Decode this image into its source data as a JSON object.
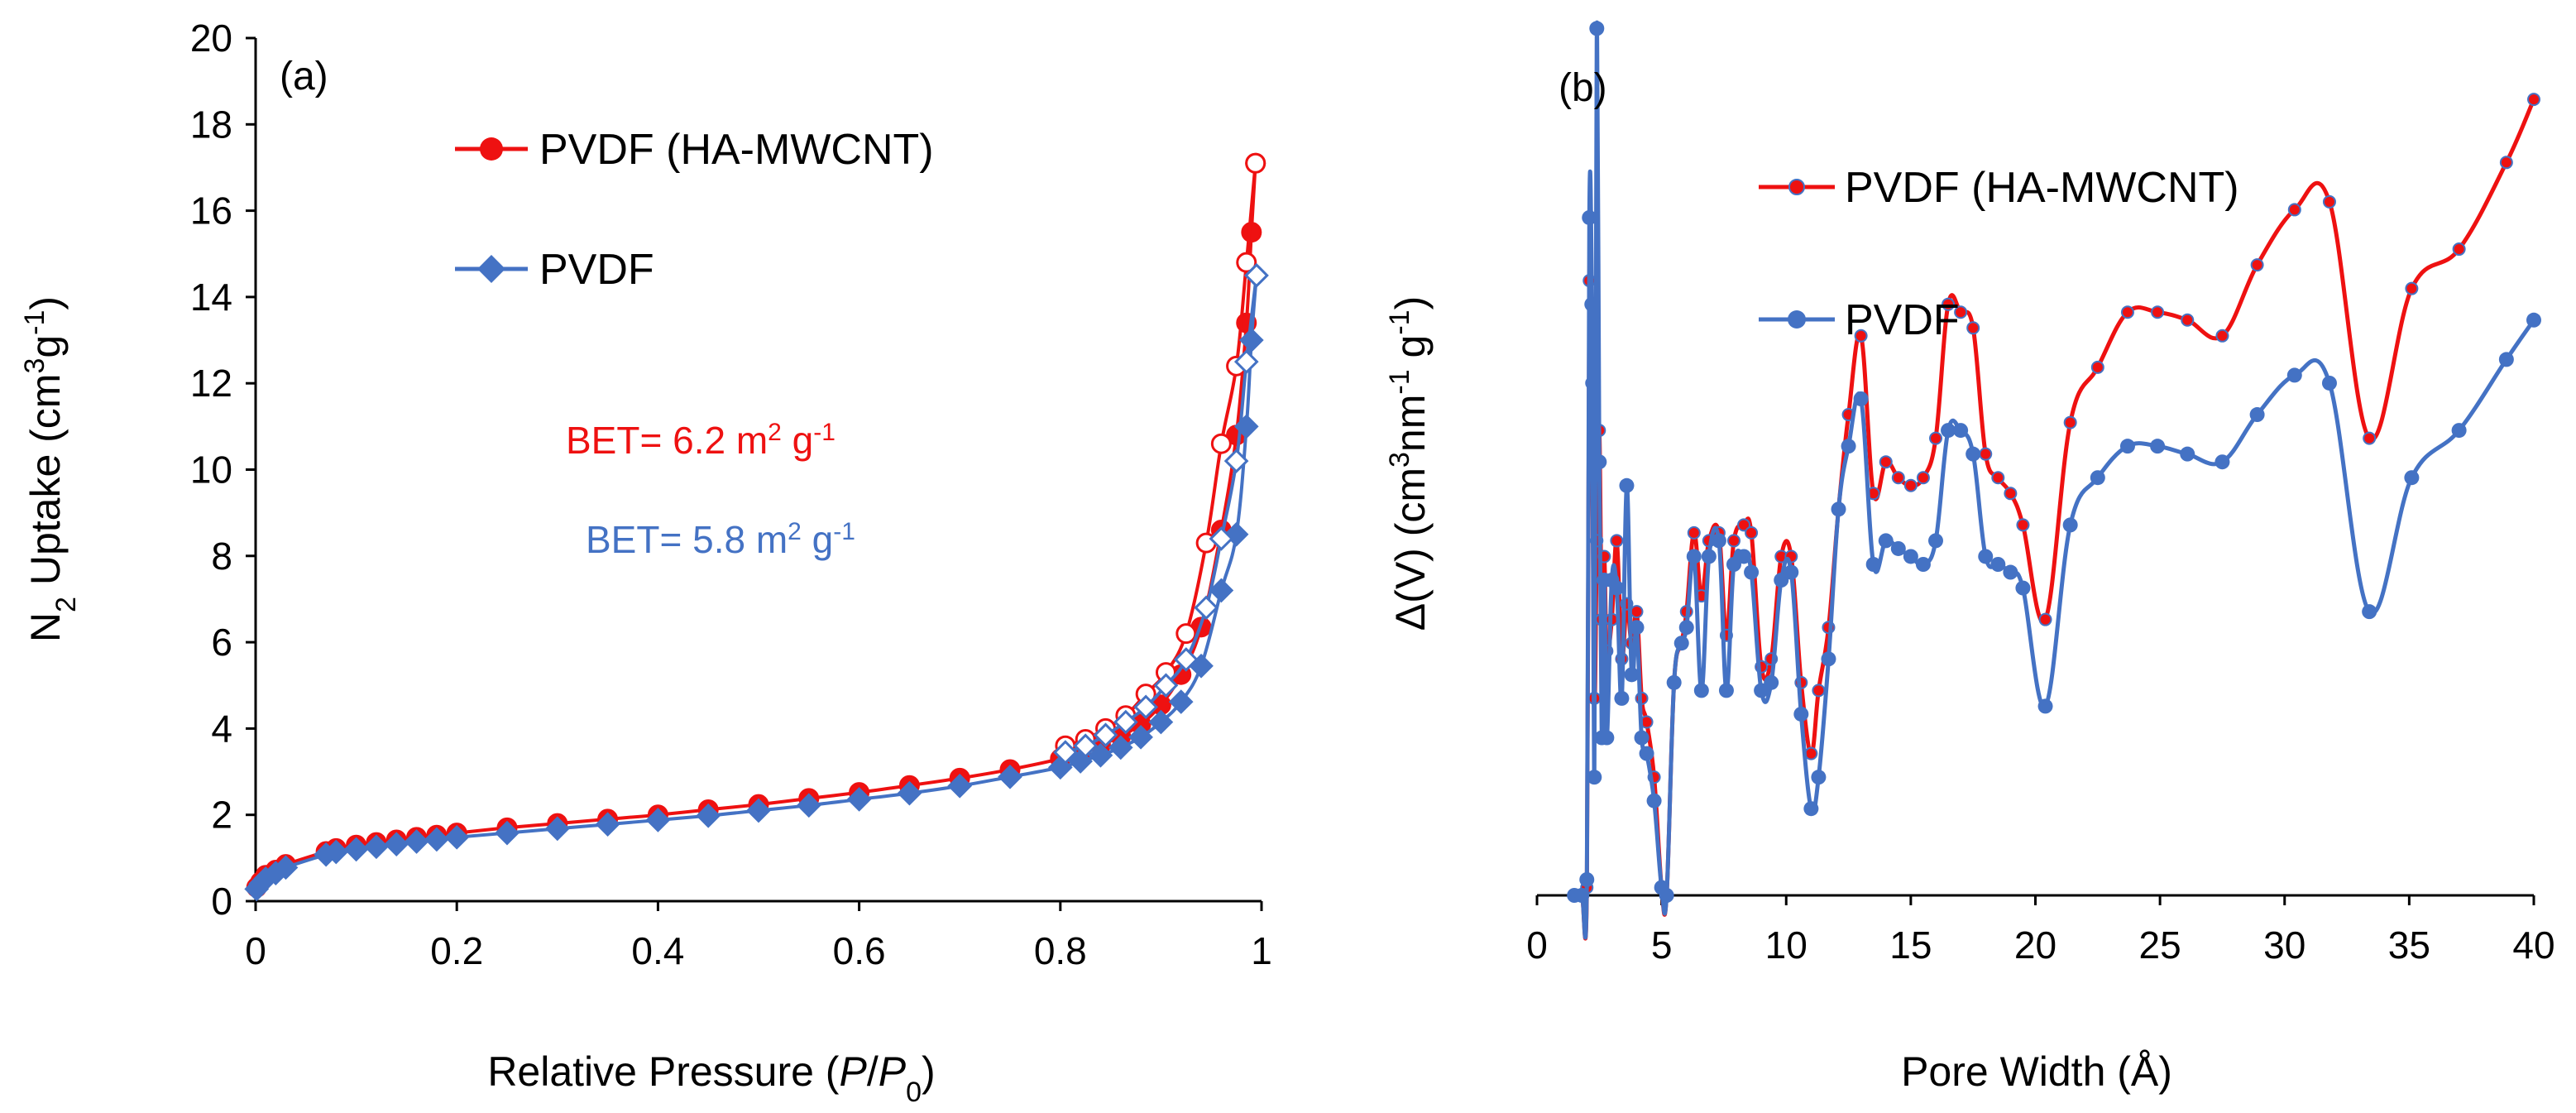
{
  "colors": {
    "red": "#ee1111",
    "blue": "#4472c4"
  },
  "chart_data": [
    {
      "panel": "(a)",
      "type": "line",
      "xlabel": {
        "pre": "Relative Pressure (",
        "p": "P",
        "slash": "/",
        "p0": "P",
        "sub0": "0",
        "post": ")"
      },
      "ylabel": {
        "n": "N",
        "sub2": "2",
        "mid": " Uptake (cm",
        "sup3": "3",
        "g": "g",
        "supm1": "-1",
        "close": ")"
      },
      "xlim": [
        0,
        1
      ],
      "ylim": [
        0,
        20
      ],
      "xticks": [
        0,
        0.2,
        0.4,
        0.6,
        0.8,
        1
      ],
      "xtick_labels": [
        "0",
        "0.2",
        "0.4",
        "0.6",
        "0.8",
        "1"
      ],
      "yticks": [
        0,
        2,
        4,
        6,
        8,
        10,
        12,
        14,
        16,
        18,
        20
      ],
      "ytick_labels": [
        "0",
        "2",
        "4",
        "6",
        "8",
        "10",
        "12",
        "14",
        "16",
        "18",
        "20"
      ],
      "legend": [
        {
          "label": "PVDF (HA-MWCNT)",
          "color": "#ee1111",
          "marker": "circle"
        },
        {
          "label": "PVDF",
          "color": "#4472c4",
          "marker": "diamond"
        }
      ],
      "annotations": [
        {
          "pre": "BET= 6.2 m",
          "sup": "2",
          "post": " g",
          "sup2": "-1",
          "color": "#ee1111"
        },
        {
          "pre": "BET= 5.8  m",
          "sup": "2",
          "post": " g",
          "sup2": "-1",
          "color": "#4472c4"
        }
      ],
      "series": [
        {
          "name": "PVDF (HA-MWCNT) adsorption",
          "color": "#ee1111",
          "marker": "circle",
          "fill": "filled",
          "x": [
            0.001,
            0.005,
            0.01,
            0.02,
            0.03,
            0.07,
            0.08,
            0.1,
            0.12,
            0.14,
            0.16,
            0.18,
            0.2,
            0.25,
            0.3,
            0.35,
            0.4,
            0.45,
            0.5,
            0.55,
            0.6,
            0.65,
            0.7,
            0.75,
            0.8,
            0.82,
            0.84,
            0.86,
            0.88,
            0.9,
            0.92,
            0.94,
            0.96,
            0.975,
            0.985,
            0.99,
            0.994
          ],
          "y": [
            0.32,
            0.45,
            0.6,
            0.72,
            0.85,
            1.15,
            1.22,
            1.3,
            1.36,
            1.42,
            1.48,
            1.53,
            1.58,
            1.7,
            1.8,
            1.9,
            2.0,
            2.12,
            2.24,
            2.38,
            2.52,
            2.68,
            2.85,
            3.05,
            3.3,
            3.45,
            3.62,
            3.82,
            4.1,
            4.55,
            5.25,
            6.35,
            8.6,
            10.8,
            13.4,
            15.5,
            17.1
          ]
        },
        {
          "name": "PVDF (HA-MWCNT) desorption",
          "color": "#ee1111",
          "marker": "circle",
          "fill": "open",
          "x": [
            0.994,
            0.985,
            0.975,
            0.96,
            0.945,
            0.925,
            0.905,
            0.885,
            0.865,
            0.845,
            0.825,
            0.805
          ],
          "y": [
            17.1,
            14.8,
            12.4,
            10.6,
            8.3,
            6.2,
            5.3,
            4.8,
            4.3,
            4.0,
            3.75,
            3.6
          ]
        },
        {
          "name": "PVDF adsorption",
          "color": "#4472c4",
          "marker": "diamond",
          "fill": "filled",
          "x": [
            0.001,
            0.005,
            0.01,
            0.02,
            0.03,
            0.07,
            0.08,
            0.1,
            0.12,
            0.14,
            0.16,
            0.18,
            0.2,
            0.25,
            0.3,
            0.35,
            0.4,
            0.45,
            0.5,
            0.55,
            0.6,
            0.65,
            0.7,
            0.75,
            0.8,
            0.82,
            0.84,
            0.86,
            0.88,
            0.9,
            0.92,
            0.94,
            0.96,
            0.975,
            0.985,
            0.99,
            0.995
          ],
          "y": [
            0.28,
            0.4,
            0.52,
            0.65,
            0.78,
            1.08,
            1.14,
            1.2,
            1.26,
            1.32,
            1.38,
            1.43,
            1.48,
            1.58,
            1.68,
            1.78,
            1.88,
            1.98,
            2.1,
            2.22,
            2.36,
            2.5,
            2.67,
            2.88,
            3.1,
            3.24,
            3.38,
            3.56,
            3.8,
            4.15,
            4.62,
            5.45,
            7.2,
            8.5,
            11.0,
            13.0,
            14.5
          ]
        },
        {
          "name": "PVDF desorption",
          "color": "#4472c4",
          "marker": "diamond",
          "fill": "open",
          "x": [
            0.995,
            0.985,
            0.975,
            0.96,
            0.945,
            0.925,
            0.905,
            0.885,
            0.865,
            0.845,
            0.825,
            0.805
          ],
          "y": [
            14.5,
            12.5,
            10.2,
            8.4,
            6.8,
            5.6,
            5.0,
            4.5,
            4.15,
            3.85,
            3.6,
            3.45
          ]
        }
      ]
    },
    {
      "panel": "(b)",
      "type": "line",
      "xlabel": "Pore Width (Å)",
      "ylabel": {
        "pre": "Δ(V) (cm",
        "sup3": "3",
        "nm": "nm",
        "supm1": "-1",
        "g": " g",
        "supm1b": "-1",
        "close": ")"
      },
      "xlim": [
        0,
        40
      ],
      "ylim": [
        0,
        10.5
      ],
      "xticks": [
        0,
        5,
        10,
        15,
        20,
        25,
        30,
        35,
        40
      ],
      "xtick_labels": [
        "0",
        "5",
        "10",
        "15",
        "20",
        "25",
        "30",
        "35",
        "40"
      ],
      "legend": [
        {
          "label": "PVDF (HA-MWCNT)",
          "color": "#ee1111",
          "marker": "dot"
        },
        {
          "label": "PVDF",
          "color": "#4472c4",
          "marker": "dot"
        }
      ],
      "series": [
        {
          "name": "PVDF (HA-MWCNT)",
          "color": "#ee1111",
          "x": [
            1.5,
            1.8,
            2.0,
            2.1,
            2.2,
            2.3,
            2.4,
            2.5,
            2.6,
            2.7,
            2.8,
            3.0,
            3.2,
            3.4,
            3.6,
            3.8,
            4.0,
            4.2,
            4.4,
            4.7,
            5.0,
            5.2,
            5.5,
            5.8,
            6.0,
            6.3,
            6.6,
            6.9,
            7.3,
            7.6,
            7.9,
            8.3,
            8.6,
            9.0,
            9.4,
            9.8,
            10.2,
            10.6,
            11.0,
            11.3,
            11.7,
            12.1,
            12.5,
            13.0,
            13.5,
            14.0,
            14.5,
            15.0,
            15.5,
            16.0,
            16.5,
            17.0,
            17.5,
            18.0,
            18.5,
            19.0,
            19.5,
            20.4,
            21.4,
            22.5,
            23.7,
            24.9,
            26.1,
            27.5,
            28.9,
            30.4,
            31.8,
            33.4,
            35.1,
            37.0,
            38.9,
            40.0
          ],
          "y": [
            0,
            0,
            0.1,
            7.8,
            6.5,
            2.5,
            4.5,
            5.9,
            3.5,
            4.3,
            3.1,
            3.5,
            4.5,
            3.0,
            3.7,
            3.2,
            3.6,
            2.5,
            2.2,
            1.5,
            0.1,
            0.0,
            2.7,
            3.2,
            3.6,
            4.6,
            3.8,
            4.5,
            4.6,
            3.3,
            4.5,
            4.7,
            4.6,
            2.9,
            3.0,
            4.3,
            4.3,
            2.7,
            1.8,
            2.6,
            3.4,
            4.9,
            6.1,
            7.1,
            5.1,
            5.5,
            5.3,
            5.2,
            5.3,
            5.8,
            7.5,
            7.4,
            7.2,
            5.6,
            5.3,
            5.1,
            4.7,
            3.5,
            6.0,
            6.7,
            7.4,
            7.4,
            7.3,
            7.1,
            8.0,
            8.7,
            8.8,
            5.8,
            7.7,
            8.2,
            9.3,
            10.1
          ]
        },
        {
          "name": "PVDF",
          "color": "#4472c4",
          "x": [
            1.5,
            1.8,
            2.0,
            2.1,
            2.2,
            2.3,
            2.4,
            2.5,
            2.6,
            2.7,
            2.8,
            3.0,
            3.2,
            3.4,
            3.6,
            3.8,
            4.0,
            4.2,
            4.4,
            4.7,
            5.0,
            5.2,
            5.5,
            5.8,
            6.0,
            6.3,
            6.6,
            6.9,
            7.3,
            7.6,
            7.9,
            8.3,
            8.6,
            9.0,
            9.4,
            9.8,
            10.2,
            10.6,
            11.0,
            11.3,
            11.7,
            12.1,
            12.5,
            13.0,
            13.5,
            14.0,
            14.5,
            15.0,
            15.5,
            16.0,
            16.5,
            17.0,
            17.5,
            18.0,
            18.5,
            19.0,
            19.5,
            20.4,
            21.4,
            22.5,
            23.7,
            24.9,
            26.1,
            27.5,
            28.9,
            30.4,
            31.8,
            33.4,
            35.1,
            37.0,
            38.9,
            40.0
          ],
          "y": [
            0,
            0,
            0.2,
            8.6,
            7.5,
            1.5,
            11.0,
            5.5,
            2.0,
            4.0,
            2.0,
            4.0,
            3.9,
            2.5,
            5.2,
            2.8,
            3.4,
            2.0,
            1.8,
            1.2,
            0.1,
            0.0,
            2.7,
            3.2,
            3.4,
            4.3,
            2.6,
            4.3,
            4.5,
            2.6,
            4.2,
            4.3,
            4.1,
            2.6,
            2.7,
            4.0,
            4.1,
            2.3,
            1.1,
            1.5,
            3.0,
            4.9,
            5.7,
            6.3,
            4.2,
            4.5,
            4.4,
            4.3,
            4.2,
            4.5,
            5.9,
            5.9,
            5.6,
            4.3,
            4.2,
            4.1,
            3.9,
            2.4,
            4.7,
            5.3,
            5.7,
            5.7,
            5.6,
            5.5,
            6.1,
            6.6,
            6.5,
            3.6,
            5.3,
            5.9,
            6.8,
            7.3
          ]
        }
      ]
    }
  ]
}
